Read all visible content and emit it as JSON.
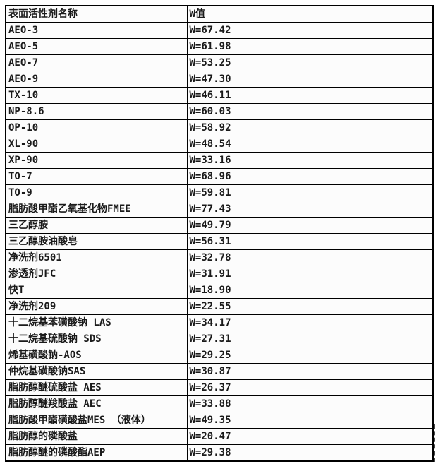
{
  "colors": {
    "border": "#000000",
    "text": "#1a1a1a",
    "background": "#ffffff",
    "cell_background": "#fcfcfc"
  },
  "chart_data": {
    "type": "table",
    "columns": [
      "表面活性剂名称",
      "W值"
    ],
    "rows": [
      [
        "AEO-3",
        "W=67.42"
      ],
      [
        "AEO-5",
        "W=61.98"
      ],
      [
        "AEO-7",
        "W=53.25"
      ],
      [
        "AEO-9",
        "W=47.30"
      ],
      [
        "TX-10",
        "W=46.11"
      ],
      [
        "NP-8.6",
        "W=60.03"
      ],
      [
        "OP-10",
        "W=58.92"
      ],
      [
        "XL-90",
        "W=48.54"
      ],
      [
        "XP-90",
        "W=33.16"
      ],
      [
        "TO-7",
        "W=68.96"
      ],
      [
        "TO-9",
        "W=59.81"
      ],
      [
        "脂肪酸甲酯乙氧基化物FMEE",
        "W=77.43"
      ],
      [
        "三乙醇胺",
        "W=49.79"
      ],
      [
        "三乙醇胺油酸皂",
        "W=56.31"
      ],
      [
        "净洗剂6501",
        "W=32.78"
      ],
      [
        "渗透剂JFC",
        "W=31.91"
      ],
      [
        "快T",
        "W=18.90"
      ],
      [
        "净洗剂209",
        "W=22.55"
      ],
      [
        "十二烷基苯磺酸钠 LAS",
        "W=34.17"
      ],
      [
        "十二烷基硫酸钠 SDS",
        "W=27.31"
      ],
      [
        "烯基磺酸钠-AOS",
        "W=29.25"
      ],
      [
        "仲烷基磺酸钠SAS",
        "W=30.87"
      ],
      [
        "脂肪醇醚硫酸盐 AES",
        "W=26.37"
      ],
      [
        "脂肪醇醚羧酸盐 AEC",
        "W=33.88"
      ],
      [
        "脂肪酸甲酯磺酸盐MES （液体）",
        "W=49.35"
      ],
      [
        "脂肪醇的磷酸盐",
        "W=20.47"
      ],
      [
        "脂肪醇醚的磷酸酯AEP",
        "W=29.38"
      ]
    ]
  }
}
